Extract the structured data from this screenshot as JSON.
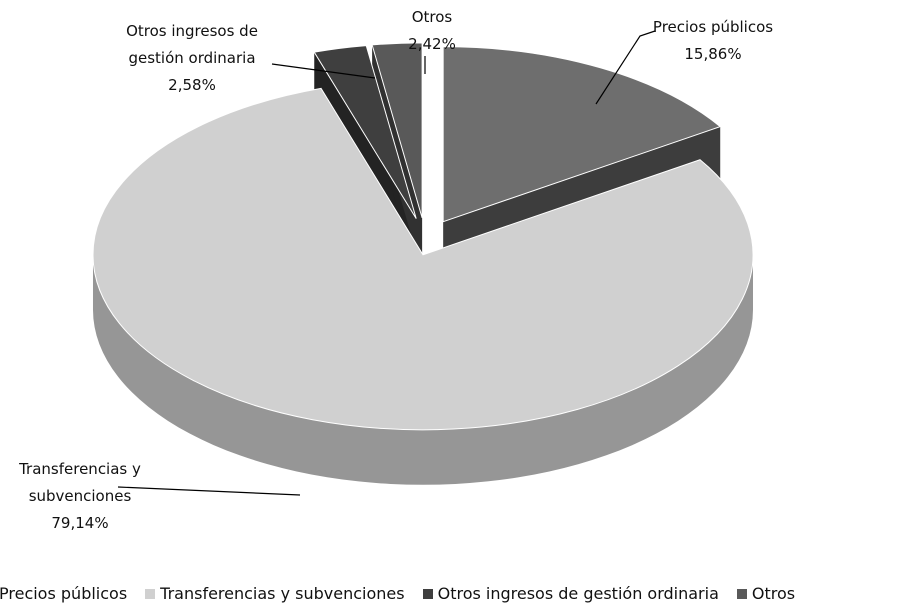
{
  "chart_data": {
    "type": "pie3d",
    "categories": [
      "Precios públicos",
      "Transferencias y subvenciones",
      "Otros ingresos de gestión ordinaria",
      "Otros"
    ],
    "values": [
      15.86,
      79.14,
      2.58,
      2.42
    ],
    "value_labels": [
      "15,86%",
      "79,14%",
      "2,58%",
      "2,42%"
    ],
    "colors": [
      "#6e6e6e",
      "#d0d0d0",
      "#3f3f3f",
      "#595959"
    ],
    "legend": "bottom"
  }
}
